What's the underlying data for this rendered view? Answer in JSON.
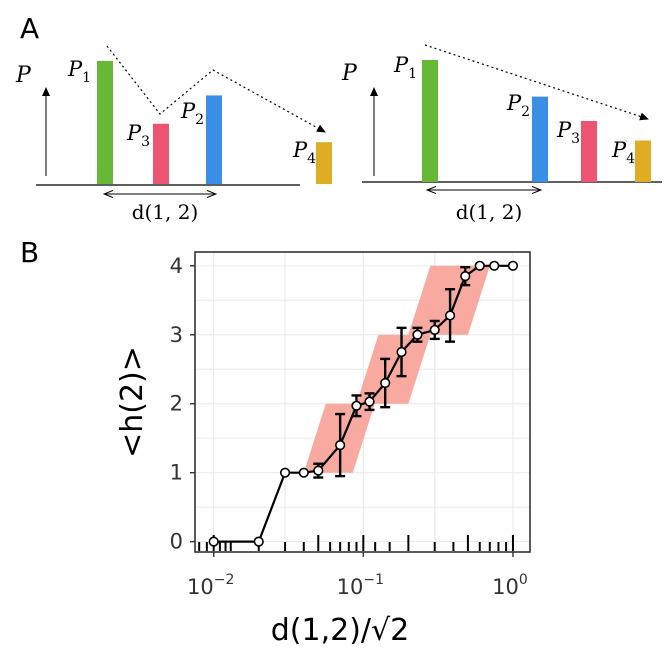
{
  "panels": {
    "a": "A",
    "b": "B"
  },
  "schematic": {
    "y_axis_label": "P",
    "distance_label": "d(1, 2)",
    "left": {
      "bars": [
        {
          "label": "P",
          "sub": "1",
          "height": 1.0,
          "color": "#65b935"
        },
        {
          "label": "P",
          "sub": "3",
          "height": 0.49,
          "color": "#ee5472"
        },
        {
          "label": "P",
          "sub": "2",
          "height": 0.72,
          "color": "#3a8ee6"
        },
        {
          "label": "P",
          "sub": "4",
          "height": 0.34,
          "color": "#e0ac24"
        }
      ]
    },
    "right": {
      "bars": [
        {
          "label": "P",
          "sub": "1",
          "height": 1.0,
          "color": "#65b935"
        },
        {
          "label": "P",
          "sub": "2",
          "height": 0.7,
          "color": "#3a8ee6"
        },
        {
          "label": "P",
          "sub": "3",
          "height": 0.5,
          "color": "#ee5472"
        },
        {
          "label": "P",
          "sub": "4",
          "height": 0.34,
          "color": "#e0ac24"
        }
      ]
    }
  },
  "chart_data": {
    "type": "line",
    "xlabel": "d(1,2)/√2",
    "ylabel": "<h(2)>",
    "xscale": "log",
    "xlim": [
      0.0075,
      1.3
    ],
    "ylim": [
      -0.15,
      4.2
    ],
    "x_ticks": [
      0.01,
      0.1,
      1
    ],
    "x_tick_labels": [
      {
        "base": "10",
        "exp": "−2"
      },
      {
        "base": "10",
        "exp": "−1"
      },
      {
        "base": "10",
        "exp": "0"
      }
    ],
    "y_ticks": [
      0,
      1,
      2,
      3,
      4
    ],
    "y_tick_labels": [
      "0",
      "1",
      "2",
      "3",
      "4"
    ],
    "grid": true,
    "rug": [
      0.008,
      0.009,
      0.01,
      0.011,
      0.012,
      0.013,
      0.02,
      0.03,
      0.04,
      0.05,
      0.06,
      0.07,
      0.08,
      0.09,
      0.1,
      0.12,
      0.15,
      0.2,
      0.3,
      0.4,
      0.5,
      0.6,
      0.7,
      0.8,
      0.9,
      1.0
    ],
    "shaded_steps": [
      {
        "x_start": 0.04,
        "x_end": 0.085,
        "y_from": 1,
        "y_to": 2
      },
      {
        "x_start": 0.09,
        "x_end": 0.2,
        "y_from": 2,
        "y_to": 3
      },
      {
        "x_start": 0.2,
        "x_end": 0.5,
        "y_from": 3,
        "y_to": 4
      }
    ],
    "band_color": "#f8a196",
    "series": [
      {
        "x": [
          0.01,
          0.02,
          0.03,
          0.04,
          0.05,
          0.07,
          0.09,
          0.11,
          0.14,
          0.18,
          0.23,
          0.3,
          0.38,
          0.48,
          0.6,
          0.75,
          1.0
        ],
        "y": [
          0,
          0,
          1,
          1,
          1.03,
          1.4,
          1.97,
          2.03,
          2.3,
          2.75,
          3.0,
          3.07,
          3.28,
          3.85,
          4.0,
          4.0,
          4.0
        ],
        "err": [
          0,
          0,
          0,
          0,
          0.1,
          0.45,
          0.15,
          0.12,
          0.35,
          0.35,
          0.1,
          0.13,
          0.38,
          0.13,
          0,
          0,
          0
        ]
      }
    ]
  }
}
